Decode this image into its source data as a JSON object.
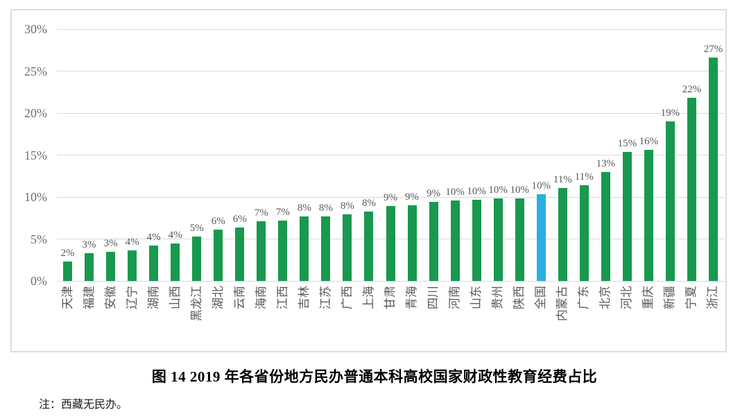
{
  "figure": {
    "caption": "图 14  2019 年各省份地方民办普通本科高校国家财政性教育经费占比",
    "note": "注：西藏无民办。"
  },
  "chart_data": {
    "type": "bar",
    "title": "图 14  2019 年各省份地方民办普通本科高校国家财政性教育经费占比",
    "categories": [
      "天津",
      "福建",
      "安徽",
      "辽宁",
      "湖南",
      "山西",
      "黑龙江",
      "湖北",
      "云南",
      "海南",
      "江西",
      "吉林",
      "江苏",
      "广西",
      "上海",
      "甘肃",
      "青海",
      "四川",
      "河南",
      "山东",
      "贵州",
      "陕西",
      "全国",
      "内蒙古",
      "广东",
      "北京",
      "河北",
      "重庆",
      "新疆",
      "宁夏",
      "浙江"
    ],
    "values": [
      2.3,
      3.3,
      3.5,
      3.6,
      4.2,
      4.5,
      5.3,
      6.1,
      6.4,
      7.1,
      7.2,
      7.7,
      7.7,
      7.9,
      8.3,
      8.9,
      9.0,
      9.4,
      9.6,
      9.7,
      9.8,
      9.8,
      10.3,
      11.1,
      11.4,
      13.0,
      15.4,
      15.6,
      19.0,
      21.8,
      26.6
    ],
    "data_labels": [
      "2%",
      "3%",
      "3%",
      "4%",
      "4%",
      "4%",
      "5%",
      "6%",
      "6%",
      "7%",
      "7%",
      "8%",
      "8%",
      "8%",
      "8%",
      "9%",
      "9%",
      "9%",
      "10%",
      "10%",
      "10%",
      "10%",
      "10%",
      "11%",
      "11%",
      "13%",
      "15%",
      "16%",
      "19%",
      "22%",
      "27%"
    ],
    "highlight_category": "全国",
    "highlight_index": 22,
    "colors": {
      "bar_default": "#18994F",
      "bar_highlight": "#2BAEE4",
      "gridline": "#d9d9d9",
      "axis_text": "#6f6f74",
      "label_text": "#595959"
    },
    "xlabel": "",
    "ylabel": "",
    "ylim": [
      0,
      30
    ],
    "ytick_values": [
      0,
      5,
      10,
      15,
      20,
      25,
      30
    ],
    "ytick_labels": [
      "0%",
      "5%",
      "10%",
      "15%",
      "20%",
      "25%",
      "30%"
    ],
    "grid": true,
    "legend": "none"
  }
}
